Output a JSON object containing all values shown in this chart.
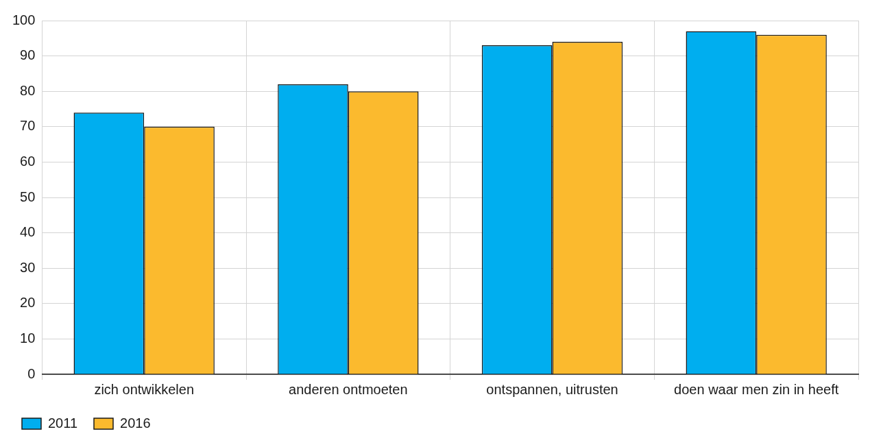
{
  "chart_data": {
    "type": "bar",
    "categories": [
      "zich ontwikkelen",
      "anderen ontmoeten",
      "ontspannen, uitrusten",
      "doen waar men zin in heeft"
    ],
    "series": [
      {
        "name": "2011",
        "color": "#00aeef",
        "values": [
          74,
          82,
          93,
          97
        ]
      },
      {
        "name": "2016",
        "color": "#fbba2e",
        "values": [
          70,
          80,
          94,
          96
        ]
      }
    ],
    "ylim": [
      0,
      100
    ],
    "yticks": [
      0,
      10,
      20,
      30,
      40,
      50,
      60,
      70,
      80,
      90,
      100
    ],
    "grid": true,
    "legend": "bottom left"
  }
}
